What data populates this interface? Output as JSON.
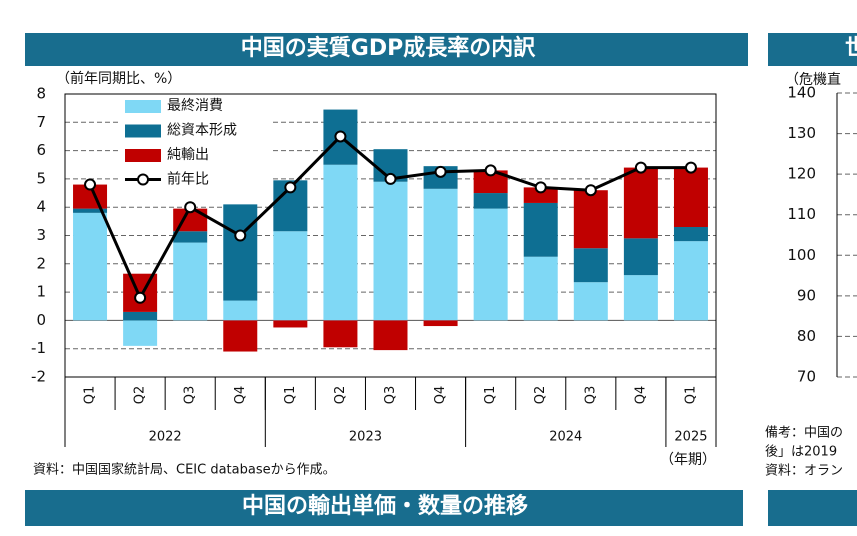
{
  "chart_data": [
    {
      "type": "bar",
      "title": "中国の実質GDP成長率の内訳",
      "y_label": "（前年同期比、%）",
      "x_label": "（年期）",
      "source": "資料：中国国家統計局、CEIC databaseから作成。",
      "categories": [
        "Q1",
        "Q2",
        "Q3",
        "Q4",
        "Q1",
        "Q2",
        "Q3",
        "Q4",
        "Q1",
        "Q2",
        "Q3",
        "Q4",
        "Q1"
      ],
      "groups": [
        {
          "label": "2022",
          "count": 4
        },
        {
          "label": "2023",
          "count": 4
        },
        {
          "label": "2024",
          "count": 4
        },
        {
          "label": "2025",
          "count": 1
        }
      ],
      "series": [
        {
          "name": "最終消費",
          "color": "#7fd8f5",
          "values": [
            3.8,
            -0.9,
            2.75,
            0.7,
            3.15,
            5.5,
            4.9,
            4.65,
            3.95,
            2.25,
            1.35,
            1.6,
            2.8
          ]
        },
        {
          "name": "総資本形成",
          "color": "#0e6f93",
          "values": [
            0.15,
            0.3,
            0.4,
            3.4,
            1.8,
            1.95,
            1.15,
            0.8,
            0.55,
            1.9,
            1.2,
            1.3,
            0.5
          ]
        },
        {
          "name": "純輸出",
          "color": "#c00000",
          "values": [
            0.85,
            1.35,
            0.8,
            -1.1,
            -0.25,
            -0.95,
            -1.05,
            -0.2,
            0.8,
            0.55,
            2.05,
            2.5,
            2.1
          ]
        },
        {
          "name": "前年比",
          "color": "#000000",
          "type": "line",
          "values": [
            4.8,
            0.8,
            4.0,
            3.0,
            4.7,
            6.5,
            5.0,
            5.25,
            5.3,
            4.7,
            4.6,
            5.4,
            5.4
          ]
        }
      ],
      "ylim": [
        -2,
        8
      ],
      "yticks": [
        -2,
        -1,
        0,
        1,
        2,
        3,
        4,
        5,
        6,
        7,
        8
      ],
      "grid": true,
      "legend": "upper left"
    },
    {
      "type": "line",
      "title": "世",
      "y_label": "（危機直",
      "ylim": [
        70,
        140
      ],
      "yticks": [
        70,
        80,
        90,
        100,
        110,
        120,
        130,
        140
      ],
      "grid": true,
      "notes": [
        "備考：中国の",
        "後」は2019",
        "資料：オラン"
      ]
    }
  ],
  "footer_banner": "中国の輸出単価・数量の推移"
}
